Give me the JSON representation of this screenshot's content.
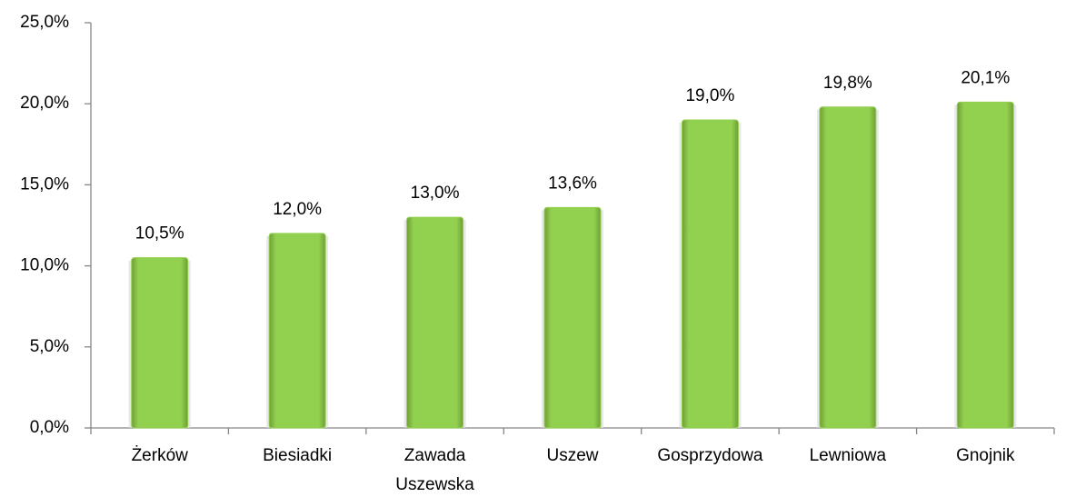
{
  "chart_data": {
    "type": "bar",
    "categories": [
      "Żerków",
      "Biesiadki",
      "Zawada Uszewska",
      "Uszew",
      "Gosprzydowa",
      "Lewniowa",
      "Gnojnik"
    ],
    "values": [
      10.5,
      12.0,
      13.0,
      13.6,
      19.0,
      19.8,
      20.1
    ],
    "value_labels": [
      "10,5%",
      "12,0%",
      "13,0%",
      "13,6%",
      "19,0%",
      "19,8%",
      "20,1%"
    ],
    "color": "#92d050",
    "ylim": [
      0,
      25
    ],
    "yticks": [
      {
        "value": 0,
        "label": "0,0%"
      },
      {
        "value": 5,
        "label": "5,0%"
      },
      {
        "value": 10,
        "label": "10,0%"
      },
      {
        "value": 15,
        "label": "15,0%"
      },
      {
        "value": 20,
        "label": "20,0%"
      },
      {
        "value": 25,
        "label": "25,0%"
      }
    ],
    "grid": false
  }
}
